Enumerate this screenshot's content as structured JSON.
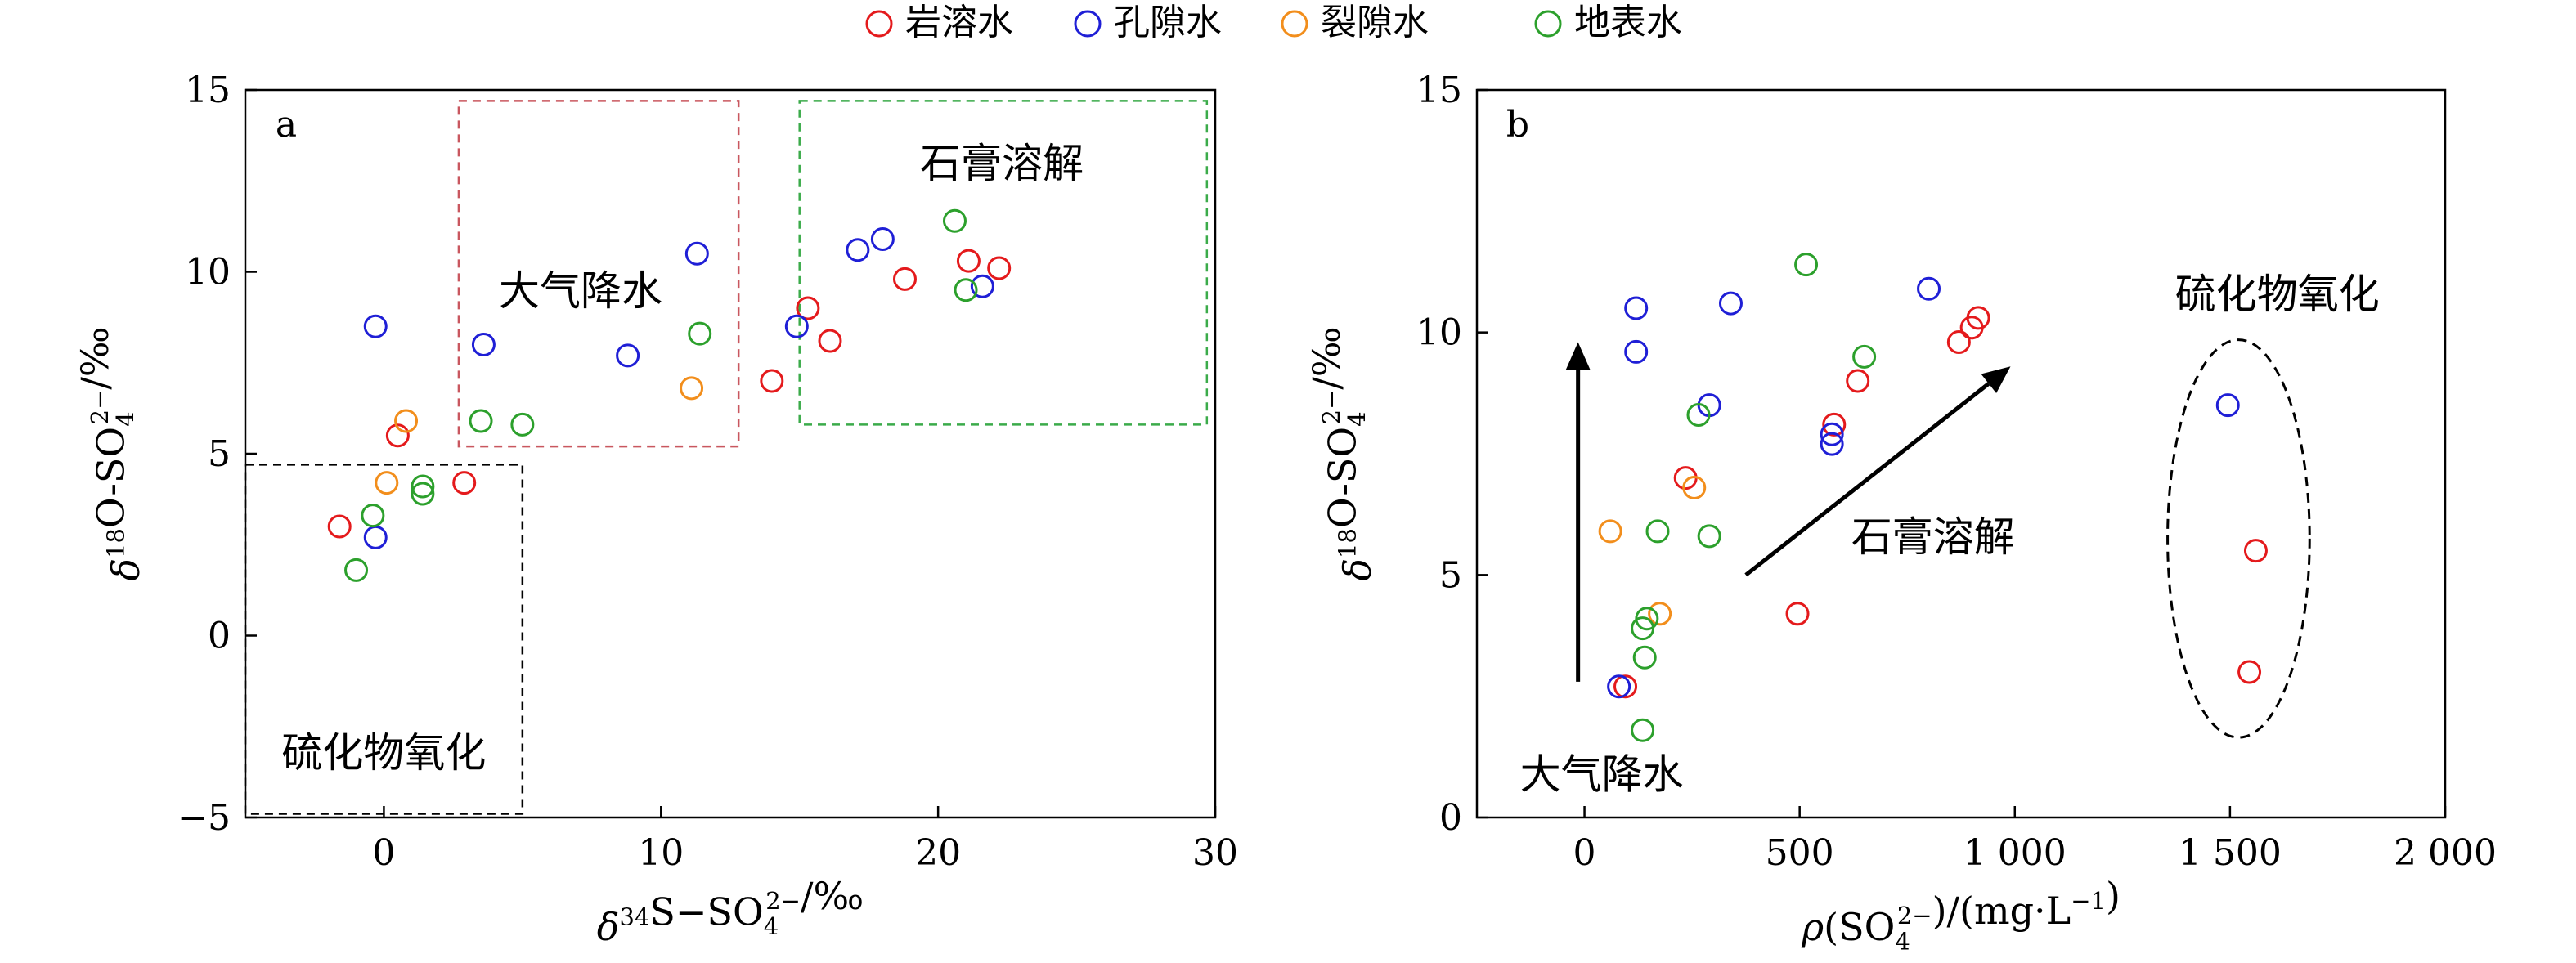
{
  "colors": {
    "karst": "#e41a1c",
    "pore": "#1f1fd6",
    "fissure": "#f28e1c",
    "surface": "#2ca02c"
  },
  "legend": [
    {
      "label": "岩溶水",
      "color": "#e41a1c"
    },
    {
      "label": "孔隙水",
      "color": "#1f1fd6"
    },
    {
      "label": "裂隙水",
      "color": "#f28e1c"
    },
    {
      "label": "地表水",
      "color": "#2ca02c"
    }
  ],
  "chart_data": [
    {
      "type": "scatter",
      "panel_label": "a",
      "xlabel": "δ34S−SO42−/‰",
      "ylabel": "δ18O-SO42−/‰",
      "xlim": [
        -5,
        30
      ],
      "ylim": [
        -5,
        15
      ],
      "xticks": [
        0,
        10,
        20,
        30
      ],
      "yticks": [
        -5,
        0,
        5,
        10,
        15
      ],
      "series": [
        {
          "name": "岩溶水",
          "points": [
            [
              -1.6,
              3.0
            ],
            [
              0.5,
              5.5
            ],
            [
              2.9,
              4.2
            ],
            [
              14.0,
              7.0
            ],
            [
              15.3,
              9.0
            ],
            [
              16.1,
              8.1
            ],
            [
              18.8,
              9.8
            ],
            [
              21.1,
              10.3
            ],
            [
              22.2,
              10.1
            ]
          ]
        },
        {
          "name": "孔隙水",
          "points": [
            [
              -0.3,
              8.5
            ],
            [
              -0.3,
              2.7
            ],
            [
              3.6,
              8.0
            ],
            [
              8.8,
              7.7
            ],
            [
              11.3,
              10.5
            ],
            [
              14.9,
              8.5
            ],
            [
              17.1,
              10.6
            ],
            [
              18.0,
              10.9
            ],
            [
              21.6,
              9.6
            ]
          ]
        },
        {
          "name": "裂隙水",
          "points": [
            [
              0.8,
              5.9
            ],
            [
              0.1,
              4.2
            ],
            [
              11.1,
              6.8
            ]
          ]
        },
        {
          "name": "地表水",
          "points": [
            [
              -1.0,
              1.8
            ],
            [
              -0.4,
              3.3
            ],
            [
              1.4,
              4.1
            ],
            [
              1.4,
              3.9
            ],
            [
              3.5,
              5.9
            ],
            [
              5.0,
              5.8
            ],
            [
              11.4,
              8.3
            ],
            [
              20.6,
              11.4
            ],
            [
              21.0,
              9.5
            ]
          ]
        }
      ],
      "regions": [
        {
          "label": "大气降水",
          "color": "#c9575f",
          "x": [
            2.7,
            12.8
          ],
          "y": [
            5.2,
            14.7
          ]
        },
        {
          "label": "石膏溶解",
          "color": "#3bab4a",
          "x": [
            15.0,
            29.7
          ],
          "y": [
            5.8,
            14.7
          ]
        },
        {
          "label": "硫化物氧化",
          "color": "#000000",
          "x": [
            -5.0,
            5.0
          ],
          "y": [
            -4.9,
            4.7
          ]
        }
      ]
    },
    {
      "type": "scatter",
      "panel_label": "b",
      "xlabel": "ρ(SO42−)/(mg·L−1)",
      "ylabel": "δ18O-SO42−/‰",
      "xlim": [
        -250,
        2000
      ],
      "ylim": [
        0,
        15
      ],
      "xticks": [
        0,
        500,
        1000,
        1500,
        2000
      ],
      "xtick_labels": [
        "0",
        "500",
        "1 000",
        "1 500",
        "2 000"
      ],
      "yticks": [
        0,
        5,
        10,
        15
      ],
      "series": [
        {
          "name": "岩溶水",
          "points": [
            [
              95,
              2.7
            ],
            [
              235,
              7.0
            ],
            [
              495,
              4.2
            ],
            [
              580,
              8.1
            ],
            [
              635,
              9.0
            ],
            [
              870,
              9.8
            ],
            [
              900,
              10.1
            ],
            [
              915,
              10.3
            ],
            [
              1560,
              5.5
            ],
            [
              1545,
              3.0
            ]
          ]
        },
        {
          "name": "孔隙水",
          "points": [
            [
              80,
              2.7
            ],
            [
              120,
              10.5
            ],
            [
              120,
              9.6
            ],
            [
              290,
              8.5
            ],
            [
              340,
              10.6
            ],
            [
              575,
              7.9
            ],
            [
              575,
              7.7
            ],
            [
              800,
              10.9
            ],
            [
              1495,
              8.5
            ]
          ]
        },
        {
          "name": "裂隙水",
          "points": [
            [
              60,
              5.9
            ],
            [
              175,
              4.2
            ],
            [
              255,
              6.8
            ]
          ]
        },
        {
          "name": "地表水",
          "points": [
            [
              135,
              1.8
            ],
            [
              135,
              3.9
            ],
            [
              140,
              3.3
            ],
            [
              145,
              4.1
            ],
            [
              170,
              5.9
            ],
            [
              265,
              8.3
            ],
            [
              290,
              5.8
            ],
            [
              515,
              11.4
            ],
            [
              650,
              9.5
            ]
          ]
        }
      ],
      "annotations": [
        {
          "label": "大气降水",
          "kind": "arrow",
          "from": [
            -15,
            2.8
          ],
          "to": [
            -15,
            9.8
          ],
          "text_at": [
            -150,
            0.9
          ]
        },
        {
          "label": "石膏溶解",
          "kind": "arrow",
          "from": [
            375,
            5.0
          ],
          "to": [
            990,
            9.3
          ],
          "text_at": [
            620,
            5.8
          ]
        },
        {
          "label": "硫化物氧化",
          "kind": "ellipse",
          "center": [
            1520,
            5.75
          ],
          "radii": [
            165,
            4.1
          ],
          "text_at": [
            1610,
            10.8
          ]
        }
      ]
    }
  ]
}
